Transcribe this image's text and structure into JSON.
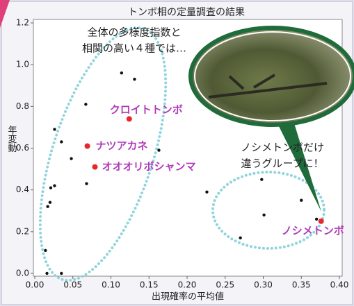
{
  "chart_data": {
    "type": "scatter",
    "title": "トンボ相の定量調査の結果",
    "xlabel": "出現確率の平均値",
    "ylabel": "年変動",
    "xlim": [
      0,
      0.4
    ],
    "ylim": [
      0,
      1.2
    ],
    "xticks": [
      {
        "value": 0,
        "label": "0.00"
      },
      {
        "value": 0.05,
        "label": "0.05"
      },
      {
        "value": 0.1,
        "label": "0.10"
      },
      {
        "value": 0.15,
        "label": "0.15"
      },
      {
        "value": 0.2,
        "label": "0.20"
      },
      {
        "value": 0.25,
        "label": "0.25"
      },
      {
        "value": 0.3,
        "label": "0.30"
      },
      {
        "value": 0.35,
        "label": "0.35"
      },
      {
        "value": 0.4,
        "label": "0.40"
      }
    ],
    "yticks": [
      {
        "value": 0,
        "label": "0.0"
      },
      {
        "value": 0.2,
        "label": "0.2"
      },
      {
        "value": 0.4,
        "label": "0.4"
      },
      {
        "value": 0.6,
        "label": "0.6"
      },
      {
        "value": 0.8,
        "label": "0.8"
      },
      {
        "value": 1,
        "label": "1.0"
      },
      {
        "value": 1.2,
        "label": "1.2"
      }
    ],
    "series": [
      {
        "color": "#111111",
        "x": [
          0.114,
          0.131,
          0.067,
          0.026,
          0.035,
          0.048,
          0.163,
          0.026,
          0.021,
          0.068,
          0.02,
          0.017,
          0.014,
          0.016,
          0.035,
          0.226,
          0.298,
          0.35,
          0.301,
          0.27,
          0.37
        ],
        "values": [
          0.96,
          0.93,
          0.81,
          0.69,
          0.63,
          0.55,
          0.59,
          0.42,
          0.41,
          0.43,
          0.34,
          0.32,
          0.11,
          0.0,
          0.0,
          0.39,
          0.45,
          0.35,
          0.28,
          0.17,
          0.26
        ]
      },
      {
        "color": "#e8262c",
        "label_color": "#b03bb8",
        "x": [
          0.124,
          0.069,
          0.079,
          0.376
        ],
        "values": [
          0.74,
          0.61,
          0.51,
          0.25
        ],
        "labels": [
          "クロイトトンボ",
          "ナツアカネ",
          "オオオリボシャンマ",
          "ノシメトンボ"
        ]
      }
    ],
    "annotations": [
      [
        "全体の多様度指数と",
        "相関の高い４種では…"
      ],
      [
        "ノシメトンボだけ",
        "違うグループに！"
      ]
    ]
  }
}
